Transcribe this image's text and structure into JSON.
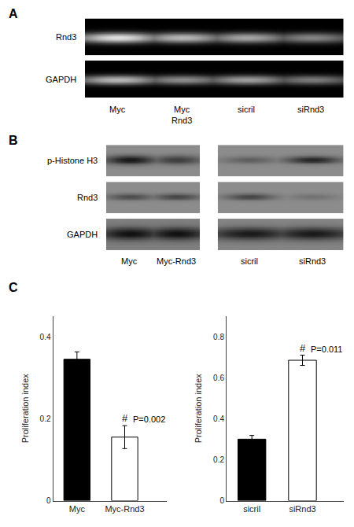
{
  "chart_data": [
    {
      "type": "gel",
      "title": "A",
      "categories": [
        "Myc",
        "Myc\nRnd3",
        "sicril",
        "siRnd3"
      ],
      "series": [
        {
          "name": "Rnd3",
          "values": [
            0.88,
            0.72,
            0.65,
            0.52
          ]
        },
        {
          "name": "GAPDH",
          "values": [
            0.72,
            0.55,
            0.62,
            0.48
          ]
        }
      ]
    },
    {
      "type": "western",
      "title": "B",
      "categories": [
        "Myc",
        "Myc-Rnd3",
        "sicril",
        "siRnd3"
      ],
      "series": [
        {
          "name": "p-Histone H3",
          "values": [
            0.88,
            0.6,
            0.35,
            0.8
          ]
        },
        {
          "name": "Rnd3",
          "values": [
            0.5,
            0.55,
            0.55,
            0.2
          ]
        },
        {
          "name": "GAPDH",
          "values": [
            0.92,
            0.92,
            0.85,
            0.85
          ]
        }
      ]
    },
    {
      "type": "bar",
      "title": "C",
      "categories": [
        "Myc",
        "Myc-Rnd3"
      ],
      "values": [
        0.345,
        0.155
      ],
      "errors": [
        0.018,
        0.028
      ],
      "colors": [
        "black",
        "white"
      ],
      "ylabel": "Proliferation index",
      "ylim": [
        0,
        0.45
      ],
      "yticks": [
        0,
        0.2,
        0.4
      ],
      "grid": false,
      "annotations": [
        {
          "text": "#",
          "x": "Myc-Rnd3"
        },
        {
          "text": "P=0.002",
          "x": "Myc-Rnd3"
        }
      ]
    },
    {
      "type": "bar",
      "categories": [
        "sicril",
        "siRnd3"
      ],
      "values": [
        0.3,
        0.685
      ],
      "errors": [
        0.018,
        0.025
      ],
      "colors": [
        "black",
        "white"
      ],
      "ylabel": "Proliferation index",
      "ylim": [
        0,
        0.9
      ],
      "yticks": [
        0,
        0.2,
        0.4,
        0.6,
        0.8
      ],
      "grid": false,
      "annotations": [
        {
          "text": "#",
          "x": "siRnd3"
        },
        {
          "text": "P=0.011",
          "x": "siRnd3"
        }
      ]
    }
  ]
}
